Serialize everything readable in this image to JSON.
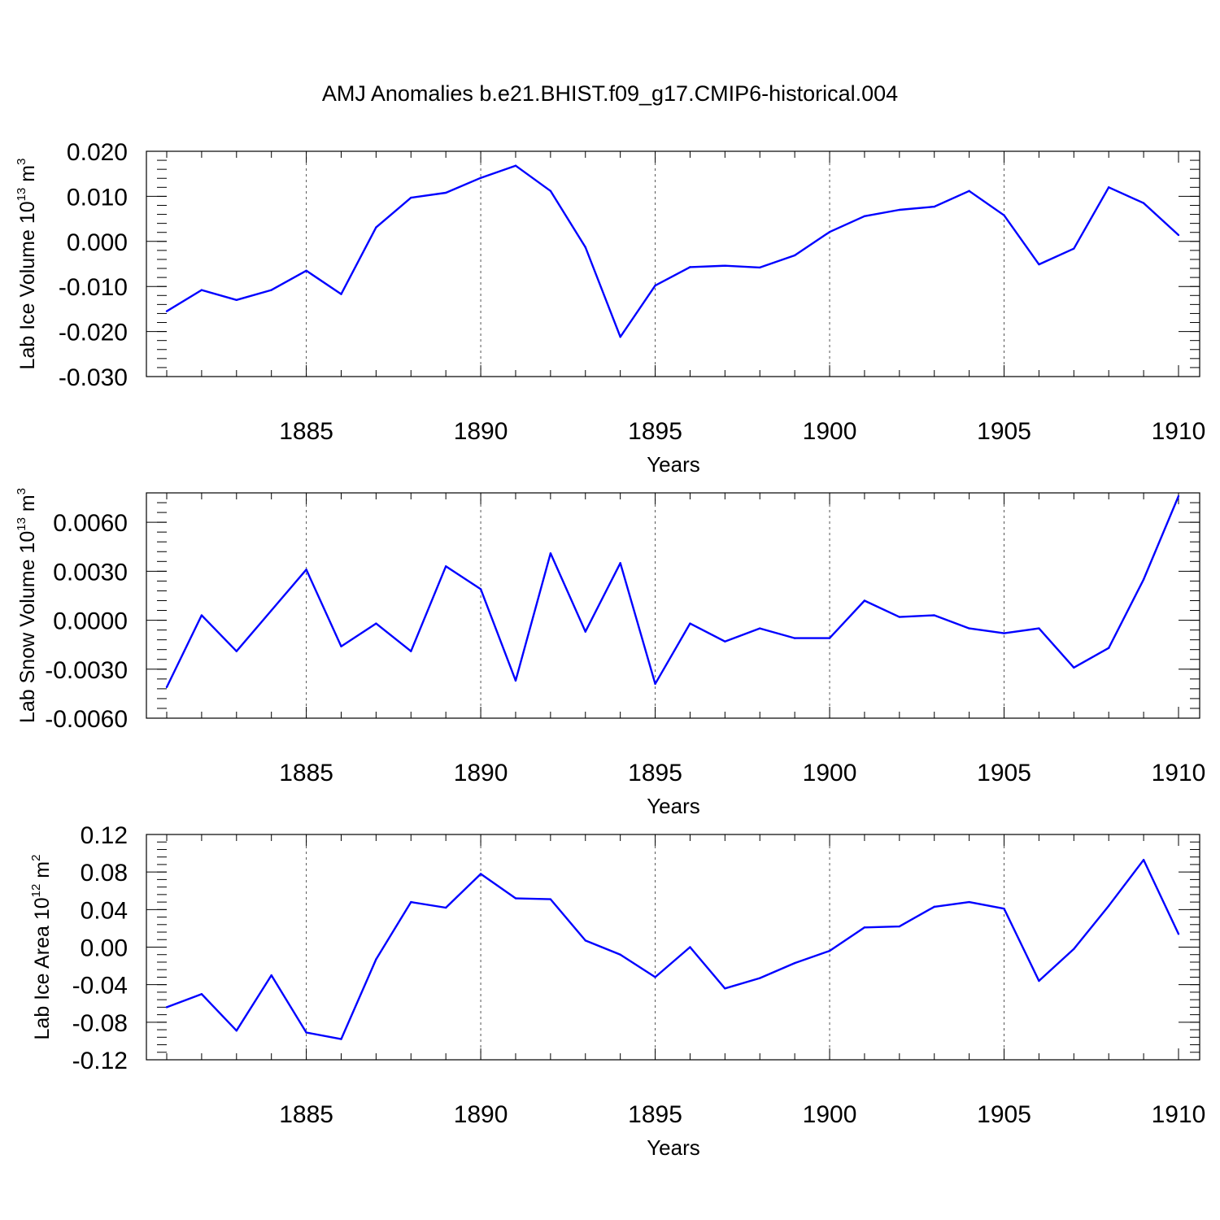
{
  "figure_title": "AMJ Anomalies b.e21.BHIST.f09_g17.CMIP6-historical.004",
  "chart_data": [
    {
      "type": "line",
      "ylabel_base": "Lab Ice Volume 10",
      "ylabel_exp": "13",
      "ylabel_unit": " m",
      "ylabel_unit_exp": "3",
      "xlabel": "Years",
      "xlim": [
        1881,
        1910
      ],
      "ylim": [
        -0.03,
        0.02
      ],
      "xticks": [
        1885,
        1890,
        1895,
        1900,
        1905,
        1910
      ],
      "xtick_labels": [
        "1885",
        "1890",
        "1895",
        "1900",
        "1905",
        "1910"
      ],
      "yticks": [
        -0.03,
        -0.02,
        -0.01,
        0.0,
        0.01,
        0.02
      ],
      "ytick_labels": [
        "-0.030",
        "-0.020",
        "-0.010",
        "0.000",
        "0.010",
        "0.020"
      ],
      "color": "#0000ff",
      "x": [
        1881,
        1882,
        1883,
        1884,
        1885,
        1886,
        1887,
        1888,
        1889,
        1890,
        1891,
        1892,
        1893,
        1894,
        1895,
        1896,
        1897,
        1898,
        1899,
        1900,
        1901,
        1902,
        1903,
        1904,
        1905,
        1906,
        1907,
        1908,
        1909,
        1910
      ],
      "values": [
        -0.0155,
        -0.0108,
        -0.013,
        -0.0108,
        -0.0065,
        -0.0117,
        0.0031,
        0.0097,
        0.0108,
        0.0141,
        0.0168,
        0.0112,
        -0.0013,
        -0.0212,
        -0.0098,
        -0.0057,
        -0.0054,
        -0.0058,
        -0.0031,
        0.0021,
        0.0056,
        0.007,
        0.0077,
        0.0112,
        0.0058,
        -0.0051,
        -0.0016,
        0.012,
        0.0085,
        0.0014
      ]
    },
    {
      "type": "line",
      "ylabel_base": "Lab Snow Volume 10",
      "ylabel_exp": "13",
      "ylabel_unit": " m",
      "ylabel_unit_exp": "3",
      "xlabel": "Years",
      "xlim": [
        1881,
        1910
      ],
      "ylim": [
        -0.006,
        0.0078
      ],
      "xticks": [
        1885,
        1890,
        1895,
        1900,
        1905,
        1910
      ],
      "xtick_labels": [
        "1885",
        "1890",
        "1895",
        "1900",
        "1905",
        "1910"
      ],
      "yticks": [
        -0.006,
        -0.003,
        0.0,
        0.003,
        0.006
      ],
      "ytick_labels": [
        "-0.0060",
        "-0.0030",
        "0.0000",
        "0.0030",
        "0.0060"
      ],
      "color": "#0000ff",
      "x": [
        1881,
        1882,
        1883,
        1884,
        1885,
        1886,
        1887,
        1888,
        1889,
        1890,
        1891,
        1892,
        1893,
        1894,
        1895,
        1896,
        1897,
        1898,
        1899,
        1900,
        1901,
        1902,
        1903,
        1904,
        1905,
        1906,
        1907,
        1908,
        1909,
        1910
      ],
      "values": [
        -0.0041,
        0.0003,
        -0.0019,
        0.0006,
        0.0031,
        -0.0016,
        -0.0002,
        -0.0019,
        0.0033,
        0.0019,
        -0.0037,
        0.0041,
        -0.0007,
        0.0035,
        -0.0039,
        -0.0002,
        -0.0013,
        -0.0005,
        -0.0011,
        -0.0011,
        0.0012,
        0.0002,
        0.0003,
        -0.0005,
        -0.0008,
        -0.0005,
        -0.0029,
        -0.0017,
        0.0025,
        0.0076
      ]
    },
    {
      "type": "line",
      "ylabel_base": "Lab Ice Area 10",
      "ylabel_exp": "12",
      "ylabel_unit": " m",
      "ylabel_unit_exp": "2",
      "xlabel": "Years",
      "xlim": [
        1881,
        1910
      ],
      "ylim": [
        -0.12,
        0.12
      ],
      "xticks": [
        1885,
        1890,
        1895,
        1900,
        1905,
        1910
      ],
      "xtick_labels": [
        "1885",
        "1890",
        "1895",
        "1900",
        "1905",
        "1910"
      ],
      "yticks": [
        -0.12,
        -0.08,
        -0.04,
        0.0,
        0.04,
        0.08,
        0.12
      ],
      "ytick_labels": [
        "-0.12",
        "-0.08",
        "-0.04",
        "0.00",
        "0.04",
        "0.08",
        "0.12"
      ],
      "color": "#0000ff",
      "x": [
        1881,
        1882,
        1883,
        1884,
        1885,
        1886,
        1887,
        1888,
        1889,
        1890,
        1891,
        1892,
        1893,
        1894,
        1895,
        1896,
        1897,
        1898,
        1899,
        1900,
        1901,
        1902,
        1903,
        1904,
        1905,
        1906,
        1907,
        1908,
        1909,
        1910
      ],
      "values": [
        -0.064,
        -0.05,
        -0.089,
        -0.03,
        -0.091,
        -0.098,
        -0.013,
        0.048,
        0.042,
        0.078,
        0.052,
        0.051,
        0.007,
        -0.008,
        -0.032,
        0.0,
        -0.044,
        -0.033,
        -0.017,
        -0.004,
        0.021,
        0.022,
        0.043,
        0.048,
        0.041,
        -0.036,
        -0.002,
        0.044,
        0.093,
        0.014
      ]
    }
  ]
}
